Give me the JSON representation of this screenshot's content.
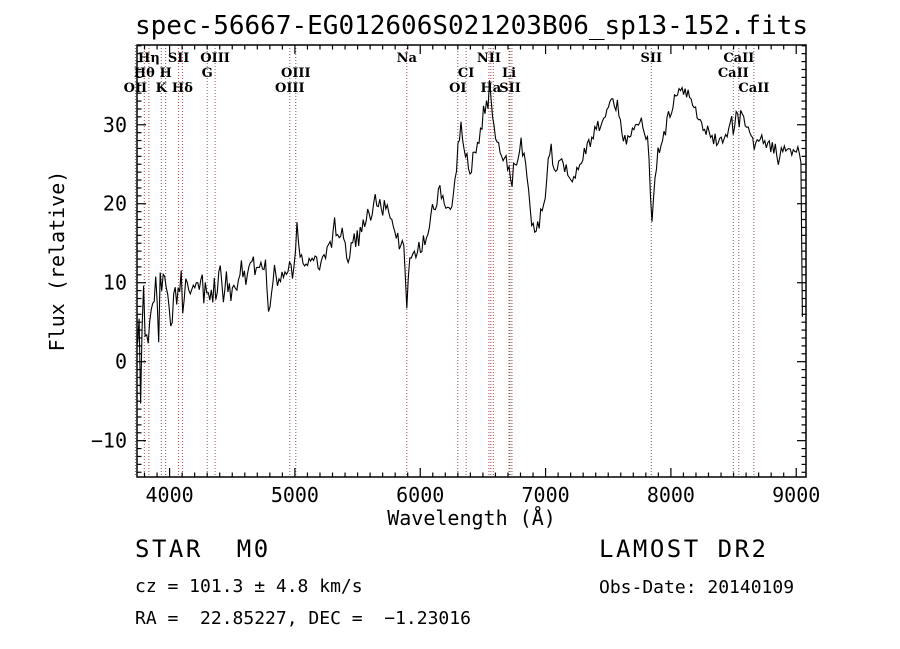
{
  "title": "spec-56667-EG012606S021203B06_sp13-152.fits",
  "annotations": {
    "object_type": "STAR",
    "subclass": "M0",
    "cz": "cz = 101.3 ± 4.8 km/s",
    "radec": "RA =  22.85227, DEC =  −1.23016",
    "survey": "LAMOST DR2",
    "obs_date": "Obs-Date: 20140109"
  },
  "chart_data": {
    "type": "line",
    "title": "spec-56667-EG012606S021203B06_sp13-152.fits",
    "xlabel": "Wavelength (Å)",
    "ylabel": "Flux (relative)",
    "xlim": [
      3740,
      9078
    ],
    "ylim": [
      -14.6,
      40.1
    ],
    "xticks": [
      4000,
      5000,
      6000,
      7000,
      8000,
      9000
    ],
    "yticks": [
      -10,
      0,
      10,
      20,
      30
    ],
    "x_minor_step": 100,
    "y_minor_step": 1,
    "grid": false,
    "legend": false,
    "line_color": "#000000",
    "marker_line_color": "#a05050",
    "spectral_lines": [
      {
        "label": "OII",
        "wavelength": 3727,
        "row": 3
      },
      {
        "label": "Hθ",
        "wavelength": 3798,
        "row": 2
      },
      {
        "label": "Hη",
        "wavelength": 3835,
        "row": 1
      },
      {
        "label": "K",
        "wavelength": 3934,
        "row": 3
      },
      {
        "label": "H",
        "wavelength": 3968,
        "row": 2
      },
      {
        "label": "SII",
        "wavelength": 4072,
        "row": 1
      },
      {
        "label": "Hδ",
        "wavelength": 4102,
        "row": 3
      },
      {
        "label": "G",
        "wavelength": 4300,
        "row": 2
      },
      {
        "label": "OIII",
        "wavelength": 4363,
        "row": 1
      },
      {
        "label": "OIII",
        "wavelength": 4959,
        "row": 3
      },
      {
        "label": "OIII",
        "wavelength": 5007,
        "row": 2
      },
      {
        "label": "Na",
        "wavelength": 5893,
        "row": 1
      },
      {
        "label": "OI",
        "wavelength": 6300,
        "row": 3
      },
      {
        "label": "CI",
        "wavelength": 6366,
        "row": 2
      },
      {
        "label": "NII",
        "wavelength": 6548,
        "row": 1
      },
      {
        "label": "Ha",
        "wavelength": 6563,
        "row": 3
      },
      {
        "label": "",
        "wavelength": 6583,
        "row": 1
      },
      {
        "label": "Li",
        "wavelength": 6708,
        "row": 2
      },
      {
        "label": "SII",
        "wavelength": 6716,
        "row": 3
      },
      {
        "label": "",
        "wavelength": 6731,
        "row": 3
      },
      {
        "label": "SII",
        "wavelength": 7844,
        "row": 1
      },
      {
        "label": "CaII",
        "wavelength": 8542,
        "row": 1
      },
      {
        "label": "CaII",
        "wavelength": 8498,
        "row": 2
      },
      {
        "label": "CaII",
        "wavelength": 8662,
        "row": 3
      }
    ],
    "spectrum_envelope": [
      [
        3745,
        1
      ],
      [
        3762,
        4
      ],
      [
        3790,
        5
      ],
      [
        3830,
        5.5
      ],
      [
        3870,
        6.5
      ],
      [
        3920,
        7
      ],
      [
        3970,
        7.5
      ],
      [
        4020,
        8.5
      ],
      [
        4080,
        9
      ],
      [
        4140,
        9.5
      ],
      [
        4200,
        10
      ],
      [
        4260,
        9.5
      ],
      [
        4310,
        9
      ],
      [
        4360,
        9.5
      ],
      [
        4420,
        10.5
      ],
      [
        4470,
        8.5
      ],
      [
        4530,
        10
      ],
      [
        4590,
        11
      ],
      [
        4650,
        11.5
      ],
      [
        4710,
        12
      ],
      [
        4770,
        12.5
      ],
      [
        4797,
        5.5
      ],
      [
        4830,
        11.5
      ],
      [
        4861,
        9.5
      ],
      [
        4900,
        11.5
      ],
      [
        4950,
        11.5
      ],
      [
        5000,
        12
      ],
      [
        5018,
        18
      ],
      [
        5040,
        12
      ],
      [
        5090,
        12.5
      ],
      [
        5140,
        13
      ],
      [
        5180,
        12
      ],
      [
        5230,
        14
      ],
      [
        5290,
        15.5
      ],
      [
        5313,
        19
      ],
      [
        5335,
        16
      ],
      [
        5390,
        15
      ],
      [
        5430,
        13.5
      ],
      [
        5470,
        15
      ],
      [
        5520,
        16.5
      ],
      [
        5570,
        18
      ],
      [
        5620,
        19.5
      ],
      [
        5680,
        20.5
      ],
      [
        5730,
        19.5
      ],
      [
        5770,
        18
      ],
      [
        5820,
        16
      ],
      [
        5870,
        14.5
      ],
      [
        5893,
        7
      ],
      [
        5915,
        13
      ],
      [
        5960,
        14
      ],
      [
        6000,
        14
      ],
      [
        6050,
        16
      ],
      [
        6100,
        19
      ],
      [
        6150,
        22
      ],
      [
        6200,
        20.5
      ],
      [
        6240,
        19
      ],
      [
        6280,
        23
      ],
      [
        6320,
        30
      ],
      [
        6355,
        27
      ],
      [
        6390,
        24.5
      ],
      [
        6430,
        26
      ],
      [
        6470,
        29
      ],
      [
        6510,
        32
      ],
      [
        6545,
        32.5
      ],
      [
        6558,
        37
      ],
      [
        6575,
        31
      ],
      [
        6610,
        28
      ],
      [
        6650,
        25.5
      ],
      [
        6680,
        26.5
      ],
      [
        6708,
        25
      ],
      [
        6730,
        23
      ],
      [
        6770,
        26
      ],
      [
        6810,
        27.5
      ],
      [
        6850,
        24
      ],
      [
        6880,
        18.5
      ],
      [
        6920,
        16
      ],
      [
        6950,
        17.5
      ],
      [
        7000,
        20.5
      ],
      [
        7035,
        28
      ],
      [
        7060,
        24.5
      ],
      [
        7120,
        26
      ],
      [
        7170,
        23.5
      ],
      [
        7210,
        22
      ],
      [
        7260,
        24.5
      ],
      [
        7320,
        27
      ],
      [
        7380,
        29
      ],
      [
        7440,
        30.5
      ],
      [
        7500,
        32
      ],
      [
        7550,
        33.5
      ],
      [
        7590,
        31
      ],
      [
        7620,
        27.5
      ],
      [
        7660,
        29
      ],
      [
        7720,
        30
      ],
      [
        7780,
        30.5
      ],
      [
        7820,
        28
      ],
      [
        7845,
        16.5
      ],
      [
        7870,
        23
      ],
      [
        7910,
        27.5
      ],
      [
        7960,
        30
      ],
      [
        8010,
        32
      ],
      [
        8060,
        34
      ],
      [
        8110,
        35
      ],
      [
        8160,
        33.5
      ],
      [
        8210,
        31.5
      ],
      [
        8260,
        29.5
      ],
      [
        8310,
        29
      ],
      [
        8360,
        27.5
      ],
      [
        8410,
        28.5
      ],
      [
        8460,
        29.5
      ],
      [
        8492,
        30
      ],
      [
        8500,
        27.8
      ],
      [
        8508,
        30.2
      ],
      [
        8536,
        31.3
      ],
      [
        8543,
        29.2
      ],
      [
        8552,
        31.6
      ],
      [
        8560,
        32
      ],
      [
        8600,
        30
      ],
      [
        8630,
        28.8
      ],
      [
        8655,
        28.3
      ],
      [
        8663,
        26.3
      ],
      [
        8672,
        28.2
      ],
      [
        8710,
        28.5
      ],
      [
        8760,
        27
      ],
      [
        8810,
        28
      ],
      [
        8860,
        25.5
      ],
      [
        8910,
        27.5
      ],
      [
        8960,
        26
      ],
      [
        9000,
        27
      ],
      [
        9030,
        26
      ],
      [
        9045,
        25.5
      ],
      [
        9050,
        1
      ]
    ],
    "noise_amplitude": [
      [
        3745,
        11
      ],
      [
        3780,
        8
      ],
      [
        3830,
        6
      ],
      [
        3880,
        5
      ],
      [
        3940,
        4.2
      ],
      [
        4050,
        3.2
      ],
      [
        4150,
        3
      ],
      [
        4300,
        2.6
      ],
      [
        4500,
        2.4
      ],
      [
        4700,
        2.2
      ],
      [
        4900,
        2
      ],
      [
        5100,
        1.8
      ],
      [
        5300,
        1.7
      ],
      [
        5600,
        1.6
      ],
      [
        5890,
        1.5
      ],
      [
        6100,
        1.5
      ],
      [
        6350,
        1.6
      ],
      [
        6560,
        1.5
      ],
      [
        6800,
        1.4
      ],
      [
        7000,
        1.3
      ],
      [
        7300,
        1.3
      ],
      [
        7600,
        1.2
      ],
      [
        7900,
        1.2
      ],
      [
        8200,
        1.1
      ],
      [
        8500,
        1.2
      ],
      [
        8800,
        1.3
      ],
      [
        9050,
        0.5
      ]
    ],
    "noise_seed": 13,
    "sample_step_angstrom": 12
  }
}
